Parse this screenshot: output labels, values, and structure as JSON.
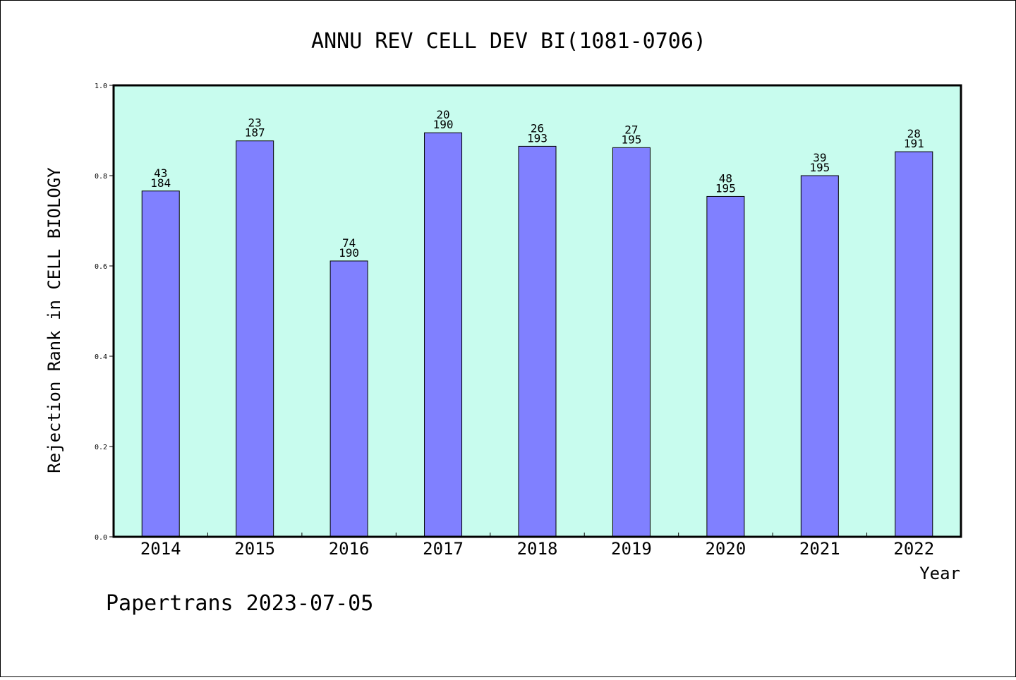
{
  "chart_data": {
    "type": "bar",
    "title": "ANNU REV CELL DEV BI(1081-0706)",
    "xlabel": "Year",
    "ylabel": "Rejection Rank in CELL BIOLOGY",
    "ylim": [
      0,
      1.0
    ],
    "yticks": [
      "0.0",
      "0.2",
      "0.4",
      "0.6",
      "0.8",
      "1.0"
    ],
    "categories": [
      "2014",
      "2015",
      "2016",
      "2017",
      "2018",
      "2019",
      "2020",
      "2021",
      "2022"
    ],
    "values": [
      0.766,
      0.877,
      0.611,
      0.895,
      0.865,
      0.862,
      0.754,
      0.8,
      0.853
    ],
    "labels_top": [
      "43",
      "23",
      "74",
      "20",
      "26",
      "27",
      "48",
      "39",
      "28"
    ],
    "labels_bottom": [
      "184",
      "187",
      "190",
      "190",
      "193",
      "195",
      "195",
      "195",
      "191"
    ],
    "grid": false,
    "legend": "none"
  },
  "colors": {
    "plot_background": "#c8fcee",
    "bar_fill": "#8080ff",
    "bar_stroke": "#000000"
  },
  "footer": "Papertrans 2023-07-05"
}
